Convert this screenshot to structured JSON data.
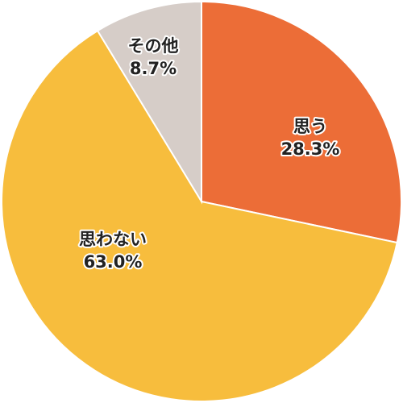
{
  "chart_data": {
    "type": "pie",
    "categories": [
      "思う",
      "思わない",
      "その他"
    ],
    "values": [
      28.3,
      63.0,
      8.7
    ],
    "value_labels": [
      "28.3%",
      "63.0%",
      "8.7%"
    ],
    "colors": [
      "#ec6d37",
      "#f7bd3d",
      "#d6cdc8"
    ]
  }
}
